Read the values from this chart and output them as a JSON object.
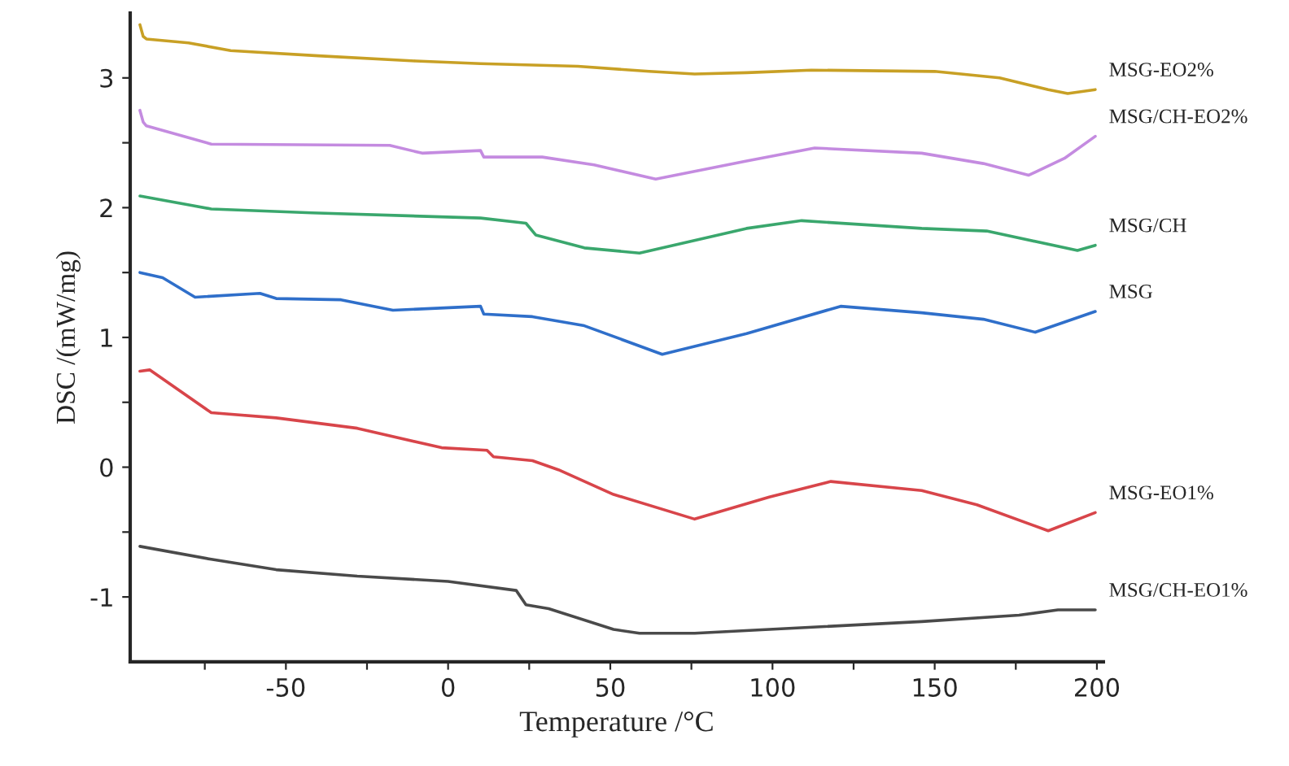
{
  "chart_data": {
    "type": "line",
    "xlabel": "Temperature /°C",
    "ylabel": "DSC /(mW/mg)",
    "xlim": [
      -98,
      202
    ],
    "ylim": [
      -1.5,
      3.5
    ],
    "xticks": [
      {
        "value": -75,
        "label": null
      },
      -50,
      {
        "value": -25,
        "label": null
      },
      0,
      {
        "value": 25,
        "label": null
      },
      50,
      {
        "value": 75,
        "label": null
      },
      100,
      {
        "value": 125,
        "label": null
      },
      150,
      {
        "value": 175,
        "label": null
      },
      200
    ],
    "yticks": [
      -1,
      {
        "value": -0.5,
        "label": null
      },
      0,
      {
        "value": 0.5,
        "label": null
      },
      1,
      {
        "value": 1.5,
        "label": null
      },
      2,
      {
        "value": 2.5,
        "label": null
      },
      3
    ],
    "grid": false,
    "legend": false,
    "marker": "none",
    "line_style": "solid",
    "series": [
      {
        "name": "MSG-EO2%",
        "color": "#c8a025",
        "x": [
          -95,
          -94,
          -93,
          -80,
          -67,
          -40,
          -10,
          10,
          40,
          62,
          76,
          92,
          112,
          150,
          170,
          185,
          191,
          199.5
        ],
        "values": [
          3.41,
          3.32,
          3.3,
          3.27,
          3.21,
          3.17,
          3.13,
          3.11,
          3.09,
          3.05,
          3.03,
          3.04,
          3.06,
          3.05,
          3.0,
          2.91,
          2.88,
          2.91
        ]
      },
      {
        "name": "MSG/CH-EO2%",
        "color": "#c48be0",
        "x": [
          -95,
          -94,
          -93,
          -73,
          -18,
          -8,
          10,
          11,
          29,
          45,
          64,
          92,
          113,
          146,
          165,
          179,
          190,
          199.5
        ],
        "values": [
          2.75,
          2.66,
          2.63,
          2.49,
          2.48,
          2.42,
          2.44,
          2.39,
          2.39,
          2.33,
          2.22,
          2.36,
          2.46,
          2.42,
          2.34,
          2.25,
          2.38,
          2.55
        ]
      },
      {
        "name": "MSG/CH",
        "color": "#3aa76d",
        "x": [
          -95,
          -73,
          -42,
          10,
          24,
          27,
          42,
          59,
          92,
          109,
          146,
          166,
          194,
          199.5
        ],
        "values": [
          2.09,
          1.99,
          1.96,
          1.92,
          1.88,
          1.79,
          1.69,
          1.65,
          1.84,
          1.9,
          1.84,
          1.82,
          1.67,
          1.71
        ]
      },
      {
        "name": "MSG",
        "color": "#2f6fca",
        "x": [
          -95,
          -88,
          -78,
          -58,
          -53,
          -33,
          -17,
          10,
          11,
          26,
          42,
          66,
          92,
          121,
          146,
          165,
          181,
          199.5
        ],
        "values": [
          1.5,
          1.46,
          1.31,
          1.34,
          1.3,
          1.29,
          1.21,
          1.24,
          1.18,
          1.16,
          1.09,
          0.87,
          1.03,
          1.24,
          1.19,
          1.14,
          1.04,
          1.2
        ]
      },
      {
        "name": "MSG-EO1%",
        "color": "#d8454a",
        "x": [
          -95,
          -92,
          -73,
          -53,
          -28,
          -2,
          12,
          14,
          26,
          34,
          51,
          76,
          99,
          118,
          146,
          163,
          185,
          199.5
        ],
        "values": [
          0.74,
          0.75,
          0.42,
          0.38,
          0.3,
          0.15,
          0.13,
          0.08,
          0.05,
          -0.02,
          -0.21,
          -0.4,
          -0.23,
          -0.11,
          -0.18,
          -0.29,
          -0.49,
          -0.35
        ]
      },
      {
        "name": "MSG/CH-EO1%",
        "color": "#4a4a4a",
        "x": [
          -95,
          -73,
          -53,
          -28,
          0,
          21,
          24,
          31,
          51,
          59,
          76,
          99,
          146,
          176,
          188,
          199.5
        ],
        "values": [
          -0.61,
          -0.71,
          -0.79,
          -0.84,
          -0.88,
          -0.95,
          -1.06,
          -1.09,
          -1.25,
          -1.28,
          -1.28,
          -1.25,
          -1.19,
          -1.14,
          -1.1,
          -1.1
        ]
      }
    ]
  }
}
